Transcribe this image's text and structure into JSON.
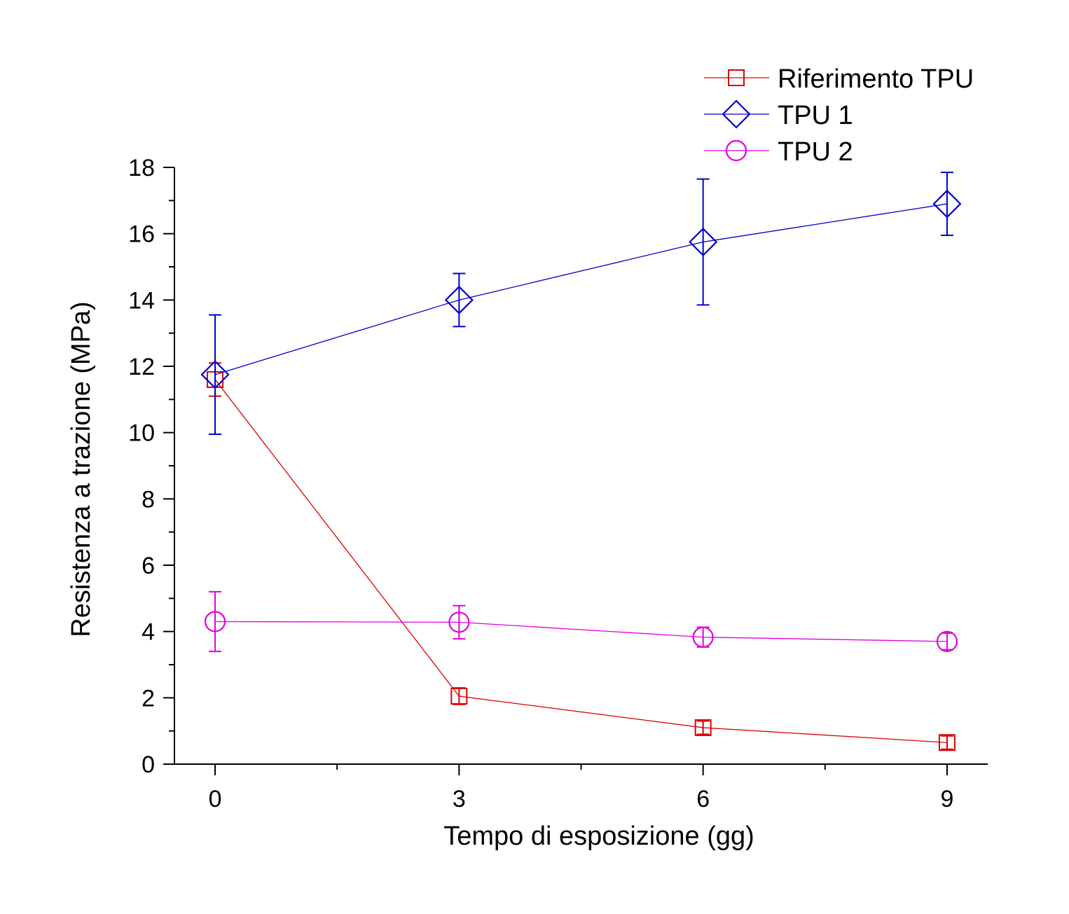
{
  "chart_data": {
    "type": "line",
    "title": "",
    "xlabel": "Tempo di esposizione (gg)",
    "ylabel": "Resistenza a trazione (MPa)",
    "xlim": [
      -0.5,
      9.5
    ],
    "ylim": [
      0,
      18
    ],
    "x_ticks": [
      0,
      3,
      6,
      9
    ],
    "x_tick_labels": [
      "0",
      "3",
      "6",
      "9"
    ],
    "x_minor_ticks": [
      1.5,
      4.5,
      7.5
    ],
    "y_ticks": [
      0,
      2,
      4,
      6,
      8,
      10,
      12,
      14,
      16,
      18
    ],
    "y_tick_labels": [
      "0",
      "2",
      "4",
      "6",
      "8",
      "10",
      "12",
      "14",
      "16",
      "18"
    ],
    "y_minor_ticks": [
      1,
      3,
      5,
      7,
      9,
      11,
      13,
      15,
      17
    ],
    "grid": false,
    "legend_position": "top-right",
    "series": [
      {
        "name": "Riferimento TPU",
        "color": "#dd0000",
        "marker": "square",
        "x": [
          0,
          3,
          6,
          9
        ],
        "values": [
          11.6,
          2.05,
          1.1,
          0.65
        ],
        "errors": [
          0.5,
          0.25,
          0.2,
          0.2
        ]
      },
      {
        "name": "TPU 1",
        "color": "#0000cc",
        "marker": "diamond",
        "x": [
          0,
          3,
          6,
          9
        ],
        "values": [
          11.75,
          14.0,
          15.75,
          16.9
        ],
        "errors": [
          1.8,
          0.8,
          1.9,
          0.95
        ]
      },
      {
        "name": "TPU 2",
        "color": "#e000e0",
        "marker": "circle",
        "x": [
          0,
          3,
          6,
          9
        ],
        "values": [
          4.3,
          4.28,
          3.83,
          3.7
        ],
        "errors": [
          0.9,
          0.5,
          0.3,
          0.25
        ]
      }
    ]
  }
}
